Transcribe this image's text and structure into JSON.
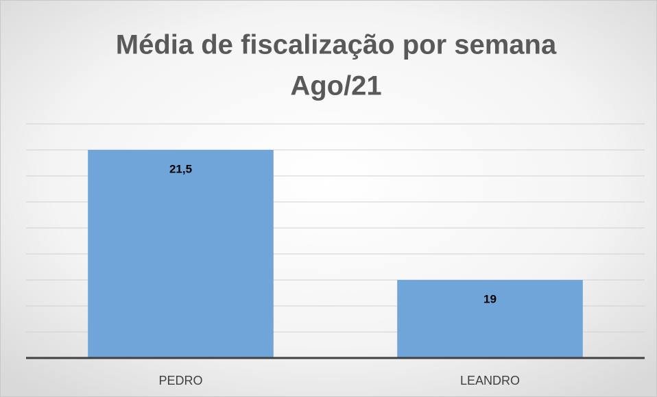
{
  "chart_data": {
    "type": "bar",
    "title": [
      "Média de fiscalização por semana",
      "Ago/21"
    ],
    "categories": [
      "PEDRO",
      "LEANDRO"
    ],
    "values": [
      21.5,
      19
    ],
    "value_labels": [
      "21,5",
      "19"
    ],
    "color": "#6fa5d9",
    "ylim": [
      17.5,
      22
    ],
    "yticks": [
      17.5,
      18,
      18.5,
      19,
      19.5,
      20,
      20.5,
      21,
      21.5,
      22
    ],
    "grid": true
  }
}
